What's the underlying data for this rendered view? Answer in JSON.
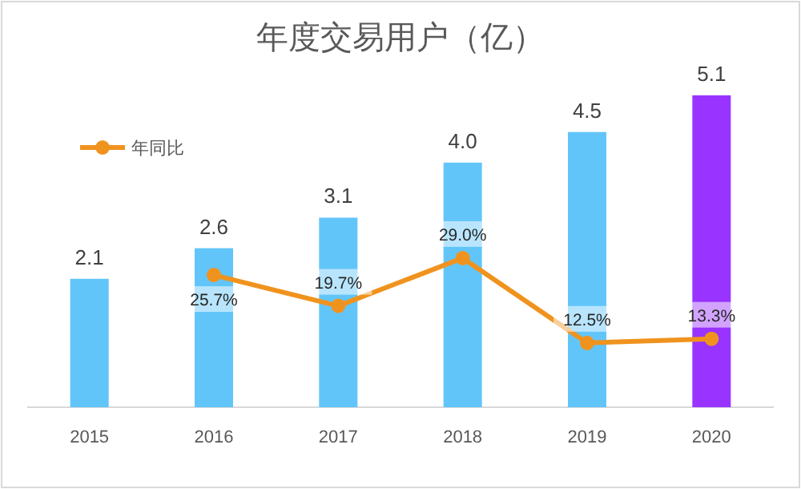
{
  "chart_data": {
    "type": "bar",
    "title": "年度交易用户（亿）",
    "categories": [
      "2015",
      "2016",
      "2017",
      "2018",
      "2019",
      "2020"
    ],
    "series": [
      {
        "colors": [
          "#62c5fa",
          "#62c5fa",
          "#62c5fa",
          "#62c5fa",
          "#62c5fa",
          "#9933ff"
        ],
        "values": [
          2.1,
          2.6,
          3.1,
          4.0,
          4.5,
          5.1
        ],
        "value_labels": [
          "2.1",
          "2.6",
          "3.1",
          "4.0",
          "4.5",
          "5.1"
        ]
      },
      {
        "type": "line",
        "name": "年同比",
        "color": "#f0931e",
        "axis": "y2",
        "marker": "circle",
        "values": [
          null,
          25.7,
          19.7,
          29.0,
          12.5,
          13.3
        ],
        "value_labels": [
          null,
          "25.7%",
          "19.7%",
          "29.0%",
          "12.5%",
          "13.3%"
        ]
      }
    ],
    "legend": "top left"
  }
}
